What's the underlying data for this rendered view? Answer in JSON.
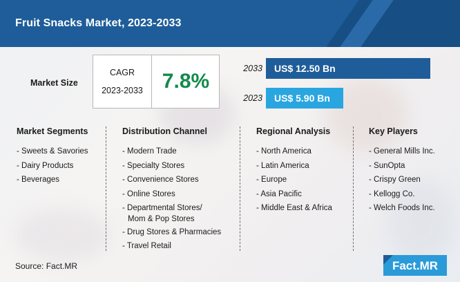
{
  "title": "Fruit Snacks Market, 2023-2033",
  "market_size": {
    "label": "Market Size",
    "cagr_label": "CAGR",
    "cagr_years": "2023-2033",
    "cagr_value": "7.8%"
  },
  "chart_data": {
    "type": "bar",
    "orientation": "horizontal",
    "categories": [
      "2033",
      "2023"
    ],
    "values": [
      12.5,
      5.9
    ],
    "value_labels": [
      "US$ 12.50 Bn",
      "US$ 5.90 Bn"
    ],
    "unit": "US$ Bn",
    "colors": [
      "#1e5d99",
      "#29a6e0"
    ]
  },
  "columns": [
    {
      "heading": "Market Segments",
      "items": [
        [
          "- Sweets & Savories"
        ],
        [
          "- Dairy Products"
        ],
        [
          "- Beverages"
        ]
      ]
    },
    {
      "heading": "Distribution Channel",
      "items": [
        [
          "- Modern Trade"
        ],
        [
          "- Specialty Stores"
        ],
        [
          "- Convenience Stores"
        ],
        [
          "- Online Stores"
        ],
        [
          "- Departmental Stores/",
          "Mom & Pop Stores"
        ],
        [
          "- Drug Stores & Pharmacies"
        ],
        [
          "- Travel Retail"
        ]
      ]
    },
    {
      "heading": "Regional Analysis",
      "items": [
        [
          "- North America"
        ],
        [
          "- Latin America"
        ],
        [
          "- Europe"
        ],
        [
          "- Asia Pacific"
        ],
        [
          "- Middle East & Africa"
        ]
      ]
    },
    {
      "heading": "Key Players",
      "items": [
        [
          "- General Mills Inc."
        ],
        [
          "- SunOpta"
        ],
        [
          "- Crispy Green"
        ],
        [
          "- Kellogg Co."
        ],
        [
          "- Welch Foods Inc."
        ]
      ]
    }
  ],
  "source": "Source: Fact.MR",
  "logo_text": "Fact.MR",
  "colors": {
    "header": "#1e5d99",
    "accent_green": "#128a4a",
    "bar_dark": "#1e5d99",
    "bar_light": "#29a6e0",
    "logo_bg": "#2a9bd8"
  }
}
